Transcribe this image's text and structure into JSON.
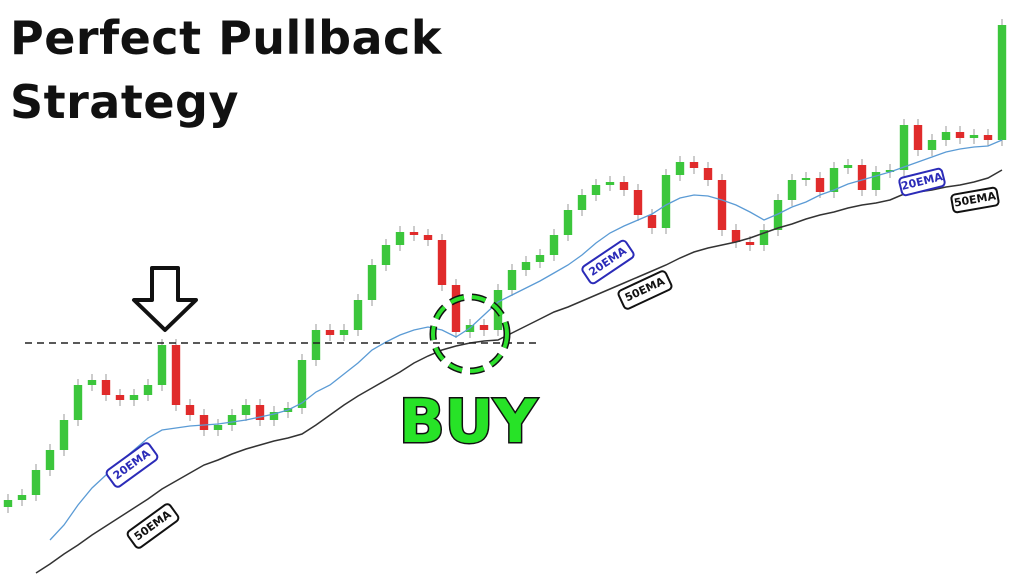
{
  "chart_data": {
    "type": "candlestick",
    "title": "Perfect Pullback Strategy",
    "annotation": "BUY",
    "pullback_level": 234,
    "xlim": [
      -0.571,
      72.571
    ],
    "ylim": [
      0,
      577
    ],
    "up_color": "#3cc63c",
    "down_color": "#e02b2b",
    "x": [
      0,
      1,
      2,
      3,
      4,
      5,
      6,
      7,
      8,
      9,
      10,
      11,
      12,
      13,
      14,
      15,
      16,
      17,
      18,
      19,
      20,
      21,
      22,
      23,
      24,
      25,
      26,
      27,
      28,
      29,
      30,
      31,
      32,
      33,
      34,
      35,
      36,
      37,
      38,
      39,
      40,
      41,
      42,
      43,
      44,
      45,
      46,
      47,
      48,
      49,
      50,
      51,
      52,
      53,
      54,
      55,
      56,
      57,
      58,
      59,
      60,
      61,
      62,
      63,
      64,
      65,
      66,
      67,
      68,
      69,
      70,
      71
    ],
    "open": [
      70,
      77,
      82,
      107,
      127,
      157,
      192,
      197,
      182,
      177,
      182,
      192,
      232,
      172,
      162,
      147,
      152,
      162,
      172,
      157,
      165,
      169,
      217,
      247,
      242,
      247,
      277,
      312,
      332,
      345,
      342,
      337,
      292,
      245,
      252,
      247,
      287,
      307,
      315,
      322,
      342,
      367,
      382,
      392,
      395,
      387,
      362,
      349,
      402,
      415,
      409,
      397,
      347,
      335,
      332,
      347,
      377,
      397,
      399,
      385,
      409,
      412,
      387,
      405,
      407,
      452,
      427,
      437,
      445,
      439,
      442,
      437
    ],
    "high": [
      83,
      88,
      113,
      133,
      163,
      198,
      203,
      203,
      188,
      188,
      198,
      238,
      238,
      178,
      168,
      158,
      168,
      178,
      178,
      171,
      175,
      223,
      253,
      253,
      253,
      283,
      318,
      338,
      351,
      351,
      348,
      343,
      298,
      258,
      258,
      293,
      313,
      321,
      328,
      348,
      373,
      388,
      398,
      401,
      401,
      393,
      368,
      408,
      421,
      421,
      415,
      403,
      353,
      341,
      353,
      383,
      403,
      405,
      405,
      415,
      418,
      418,
      411,
      413,
      458,
      458,
      443,
      451,
      451,
      448,
      448,
      558
    ],
    "low": [
      64,
      71,
      76,
      101,
      121,
      151,
      186,
      176,
      171,
      171,
      176,
      186,
      166,
      156,
      141,
      141,
      146,
      156,
      151,
      151,
      159,
      163,
      211,
      236,
      236,
      241,
      271,
      306,
      326,
      336,
      331,
      286,
      239,
      239,
      241,
      241,
      281,
      301,
      309,
      316,
      336,
      361,
      376,
      386,
      381,
      356,
      343,
      343,
      396,
      403,
      391,
      341,
      329,
      326,
      326,
      341,
      371,
      391,
      379,
      379,
      403,
      381,
      381,
      399,
      401,
      421,
      421,
      431,
      433,
      433,
      431,
      431
    ],
    "close": [
      77,
      82,
      107,
      127,
      157,
      192,
      197,
      182,
      177,
      182,
      192,
      232,
      172,
      162,
      147,
      152,
      162,
      172,
      157,
      165,
      169,
      217,
      247,
      242,
      247,
      277,
      312,
      332,
      345,
      342,
      337,
      292,
      245,
      252,
      247,
      287,
      307,
      315,
      322,
      342,
      367,
      382,
      392,
      395,
      387,
      362,
      349,
      402,
      415,
      409,
      397,
      347,
      335,
      332,
      347,
      377,
      397,
      399,
      385,
      409,
      412,
      387,
      405,
      407,
      452,
      427,
      437,
      445,
      439,
      442,
      437,
      552
    ],
    "series": [
      {
        "name": "20EMA",
        "color": "#5b9bd5",
        "label_color": "#2b2bb8",
        "values": [
          null,
          null,
          null,
          37,
          52,
          72,
          89,
          102,
          115,
          127,
          139,
          147,
          149,
          151,
          152,
          153,
          155,
          157,
          160,
          163,
          167,
          174,
          185,
          192,
          203,
          214,
          227,
          235,
          242,
          247,
          250,
          247,
          240,
          249,
          262,
          275,
          282,
          289,
          296,
          304,
          312,
          322,
          334,
          344,
          351,
          357,
          363,
          372,
          379,
          382,
          381,
          377,
          372,
          365,
          357,
          363,
          370,
          375,
          382,
          387,
          393,
          397,
          401,
          405,
          410,
          415,
          420,
          425,
          428,
          430,
          431,
          437
        ]
      },
      {
        "name": "50EMA",
        "color": "#333333",
        "label_color": "#111111",
        "values": [
          null,
          null,
          4,
          13,
          23,
          32,
          42,
          51,
          60,
          69,
          78,
          88,
          96,
          104,
          112,
          117,
          123,
          128,
          132,
          136,
          139,
          143,
          152,
          162,
          172,
          181,
          189,
          197,
          205,
          214,
          221,
          227,
          231,
          234,
          236,
          237,
          244,
          251,
          258,
          265,
          270,
          276,
          282,
          288,
          294,
          300,
          306,
          312,
          319,
          325,
          329,
          332,
          335,
          339,
          344,
          349,
          353,
          358,
          362,
          365,
          369,
          372,
          374,
          377,
          383,
          385,
          387,
          390,
          392,
          395,
          399,
          407
        ]
      }
    ]
  }
}
